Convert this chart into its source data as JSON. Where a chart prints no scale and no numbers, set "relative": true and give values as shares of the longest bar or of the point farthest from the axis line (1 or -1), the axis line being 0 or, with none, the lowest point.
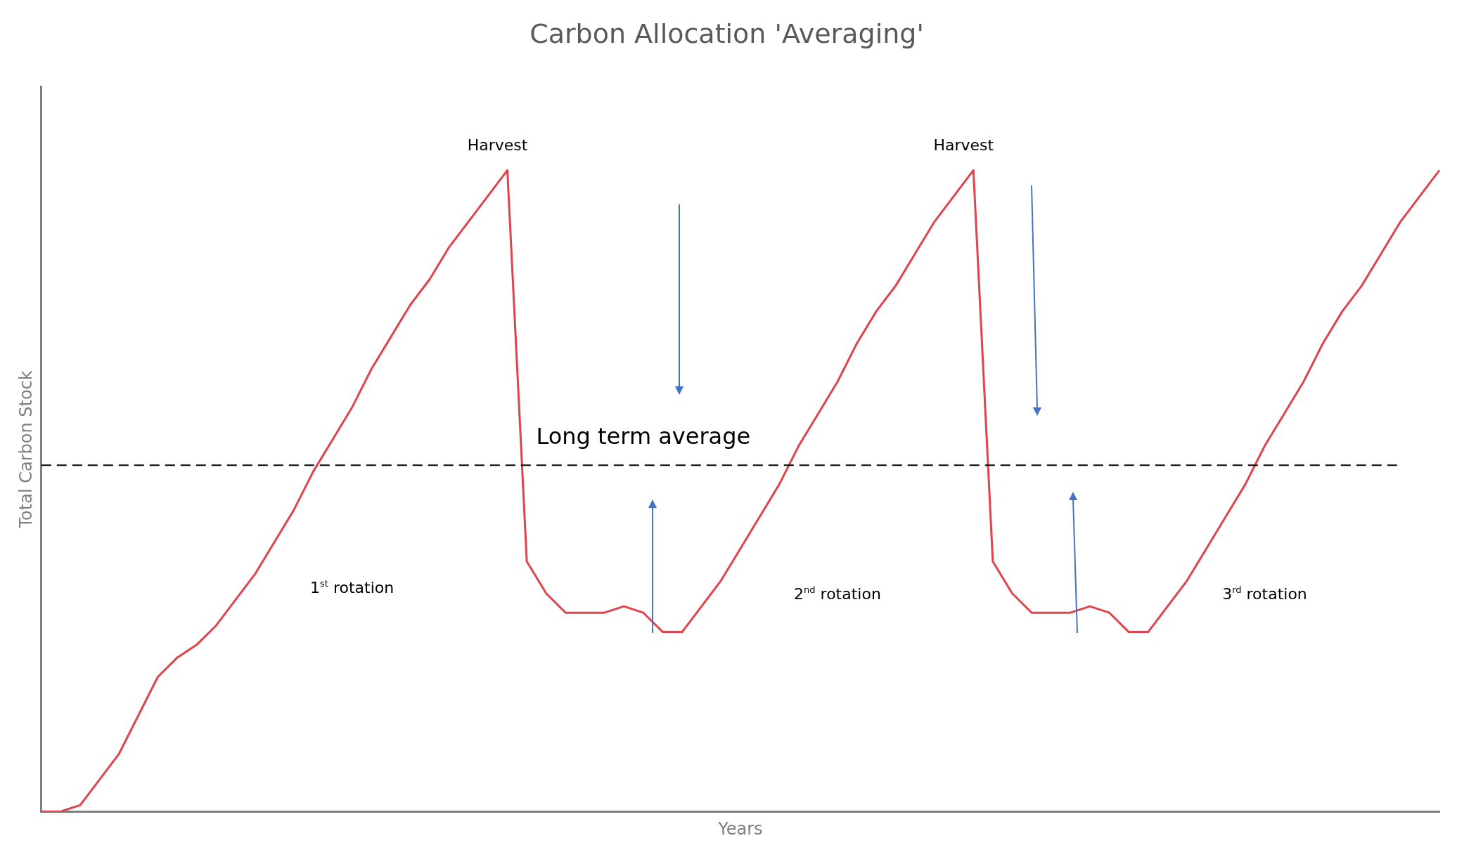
{
  "chart_data": {
    "type": "line",
    "title": "Carbon Allocation 'Averaging'",
    "xlabel": "Years",
    "ylabel": "Total Carbon Stock",
    "relative": true,
    "grid": false,
    "legend": false,
    "tick_labels": false,
    "marker": "none",
    "line_style": "solid",
    "categories": [
      null,
      null,
      null,
      null,
      null,
      null,
      null,
      null,
      null,
      null,
      null,
      null,
      null,
      null,
      null,
      null,
      null,
      null,
      null,
      null,
      null,
      null,
      null,
      null,
      null,
      null,
      null,
      null,
      null,
      null,
      null,
      null,
      null,
      null,
      null,
      null,
      null,
      null,
      null,
      null,
      null,
      null,
      null,
      null,
      null,
      null,
      null,
      null,
      null,
      null,
      null,
      null,
      null,
      null,
      null,
      null,
      null,
      null,
      null,
      null,
      null,
      null,
      null,
      null,
      null,
      null,
      null,
      null,
      null,
      null,
      null,
      null,
      null
    ],
    "series": [
      {
        "color": "#e0434b",
        "values": [
          0,
          0,
          0.01,
          0.05,
          0.09,
          0.15,
          0.21,
          0.24,
          0.26,
          0.29,
          0.33,
          0.37,
          0.42,
          0.47,
          0.53,
          0.58,
          0.63,
          0.69,
          0.74,
          0.79,
          0.83,
          0.88,
          0.92,
          0.96,
          1,
          0.39,
          0.34,
          0.31,
          0.31,
          0.31,
          0.32,
          0.31,
          0.28,
          0.28,
          0.32,
          0.36,
          0.41,
          0.46,
          0.51,
          0.57,
          0.62,
          0.67,
          0.73,
          0.78,
          0.82,
          0.87,
          0.92,
          0.96,
          1,
          0.39,
          0.34,
          0.31,
          0.31,
          0.31,
          0.32,
          0.31,
          0.28,
          0.28,
          0.32,
          0.36,
          0.41,
          0.46,
          0.51,
          0.57,
          0.62,
          0.67,
          0.73,
          0.78,
          0.82,
          0.87,
          0.92,
          0.96,
          1
        ]
      }
    ],
    "ref_lines": [
      {
        "axis": "y",
        "value": 0.54,
        "label": "Long term average",
        "color": "#000000",
        "line_style": "dashed"
      }
    ],
    "annotations": [
      "Harvest",
      "Harvest",
      "1$^{st}$ rotation",
      "2$^{nd}$ rotation",
      "3$^{rd}$ rotation"
    ]
  }
}
